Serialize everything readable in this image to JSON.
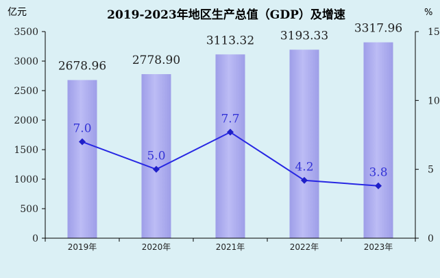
{
  "colors": {
    "background": "#dbf0f5",
    "bar_fill": "#bcbcf5",
    "bar_edge": "#9e9ee8",
    "line": "#2727e3",
    "marker": "#1f1fc8",
    "line_label": "#3333d6",
    "axis": "#000000",
    "title": "#000000"
  },
  "chart_data": {
    "type": "bar+line",
    "title": "2019-2023年地区生产总值（GDP）及增速",
    "left_axis_unit": "亿元",
    "right_axis_unit": "%",
    "categories": [
      "2019年",
      "2020年",
      "2021年",
      "2022年",
      "2023年"
    ],
    "series": [
      {
        "type": "bar",
        "axis": "left",
        "values": [
          2678.96,
          2778.9,
          3113.32,
          3193.33,
          3317.96
        ],
        "labels": [
          "2678.96",
          "2778.90",
          "3113.32",
          "3193.33",
          "3317.96"
        ]
      },
      {
        "type": "line",
        "axis": "right",
        "values": [
          7.0,
          5.0,
          7.7,
          4.2,
          3.8
        ],
        "labels": [
          "7.0",
          "5.0",
          "7.7",
          "4.2",
          "3.8"
        ]
      }
    ],
    "ylim_left": [
      0,
      3500
    ],
    "yticks_left": [
      "0",
      "500",
      "1000",
      "1500",
      "2000",
      "2500",
      "3000",
      "3500"
    ],
    "ylim_right": [
      0,
      15
    ],
    "yticks_right": [
      "0",
      "5",
      "10",
      "15"
    ],
    "grid": false,
    "legend": "none"
  }
}
